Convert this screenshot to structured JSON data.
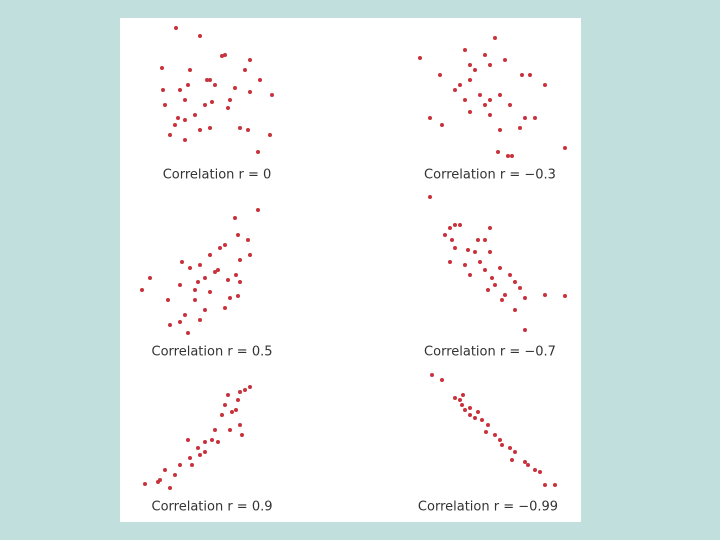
{
  "chart_data": [
    {
      "type": "scatter",
      "title": "Correlation r = 0",
      "color": "#c8323c",
      "xlim": [
        0,
        135
      ],
      "ylim": [
        0,
        135
      ],
      "x": [
        36,
        60,
        22,
        82,
        85,
        110,
        105,
        120,
        132,
        50,
        48,
        45,
        23,
        25,
        70,
        75,
        65,
        72,
        90,
        95,
        38,
        35,
        45,
        55,
        60,
        70,
        88,
        100,
        108,
        130,
        118,
        30,
        45,
        67,
        110,
        40
      ],
      "values": [
        132,
        124,
        92,
        104,
        105,
        100,
        90,
        80,
        65,
        90,
        75,
        60,
        70,
        55,
        80,
        75,
        55,
        58,
        60,
        72,
        42,
        35,
        40,
        45,
        30,
        32,
        52,
        32,
        30,
        25,
        8,
        25,
        20,
        80,
        68,
        70
      ]
    },
    {
      "type": "scatter",
      "title": "Correlation r = −0.3",
      "color": "#c8323c",
      "xlim": [
        0,
        155
      ],
      "ylim": [
        0,
        135
      ],
      "x": [
        5,
        50,
        80,
        55,
        25,
        70,
        75,
        90,
        107,
        115,
        130,
        45,
        55,
        65,
        75,
        85,
        50,
        70,
        95,
        15,
        27,
        55,
        75,
        110,
        120,
        105,
        85,
        83,
        93,
        97,
        150,
        60,
        40
      ],
      "values": [
        102,
        110,
        122,
        95,
        85,
        105,
        95,
        100,
        85,
        85,
        75,
        75,
        80,
        65,
        60,
        65,
        60,
        55,
        55,
        42,
        35,
        48,
        45,
        42,
        42,
        32,
        30,
        8,
        4,
        4,
        12,
        90,
        70
      ]
    },
    {
      "type": "scatter",
      "title": "Correlation r = 0.5",
      "color": "#c8323c",
      "xlim": [
        0,
        135
      ],
      "ylim": [
        0,
        145
      ],
      "x": [
        118,
        95,
        108,
        98,
        85,
        70,
        100,
        110,
        42,
        50,
        60,
        75,
        78,
        65,
        58,
        88,
        100,
        10,
        2,
        40,
        55,
        70,
        28,
        55,
        90,
        98,
        65,
        85,
        45,
        60,
        40,
        48,
        30,
        96,
        80
      ],
      "values": [
        130,
        122,
        100,
        105,
        95,
        85,
        80,
        85,
        78,
        72,
        75,
        68,
        70,
        62,
        58,
        60,
        58,
        62,
        50,
        55,
        50,
        48,
        40,
        40,
        42,
        44,
        30,
        32,
        25,
        20,
        18,
        7,
        15,
        65,
        92
      ]
    },
    {
      "type": "scatter",
      "title": "Correlation r = −0.7",
      "color": "#c8323c",
      "xlim": [
        0,
        155
      ],
      "ylim": [
        0,
        145
      ],
      "x": [
        15,
        35,
        40,
        45,
        30,
        75,
        63,
        70,
        40,
        53,
        60,
        75,
        35,
        50,
        70,
        85,
        55,
        77,
        95,
        100,
        80,
        73,
        90,
        105,
        110,
        130,
        150,
        87,
        100,
        110,
        37,
        65
      ],
      "values": [
        143,
        112,
        115,
        115,
        105,
        112,
        100,
        100,
        92,
        90,
        88,
        88,
        78,
        75,
        70,
        72,
        65,
        62,
        65,
        58,
        55,
        50,
        45,
        52,
        42,
        45,
        44,
        40,
        30,
        10,
        100,
        78
      ]
    },
    {
      "type": "scatter",
      "title": "Correlation r = 0.9",
      "color": "#c8323c",
      "xlim": [
        0,
        135
      ],
      "ylim": [
        0,
        110
      ],
      "x": [
        110,
        105,
        100,
        88,
        98,
        82,
        92,
        96,
        100,
        102,
        90,
        75,
        72,
        65,
        78,
        48,
        58,
        65,
        50,
        40,
        52,
        35,
        25,
        20,
        18,
        30,
        5,
        60,
        85
      ],
      "values": [
        103,
        100,
        98,
        95,
        90,
        75,
        78,
        80,
        65,
        55,
        60,
        60,
        50,
        48,
        48,
        50,
        42,
        38,
        32,
        25,
        25,
        15,
        20,
        10,
        8,
        2,
        6,
        35,
        85
      ]
    },
    {
      "type": "scatter",
      "title": "Correlation r = −0.99",
      "color": "#c8323c",
      "xlim": [
        0,
        155
      ],
      "ylim": [
        0,
        120
      ],
      "x": [
        17,
        27,
        40,
        45,
        47,
        50,
        55,
        63,
        60,
        67,
        73,
        71,
        80,
        85,
        87,
        95,
        100,
        97,
        110,
        113,
        120,
        125,
        130,
        140,
        48,
        55
      ],
      "values": [
        115,
        110,
        92,
        90,
        85,
        80,
        82,
        78,
        72,
        70,
        65,
        58,
        55,
        50,
        45,
        42,
        38,
        30,
        28,
        25,
        20,
        18,
        5,
        5,
        95,
        75
      ]
    }
  ]
}
